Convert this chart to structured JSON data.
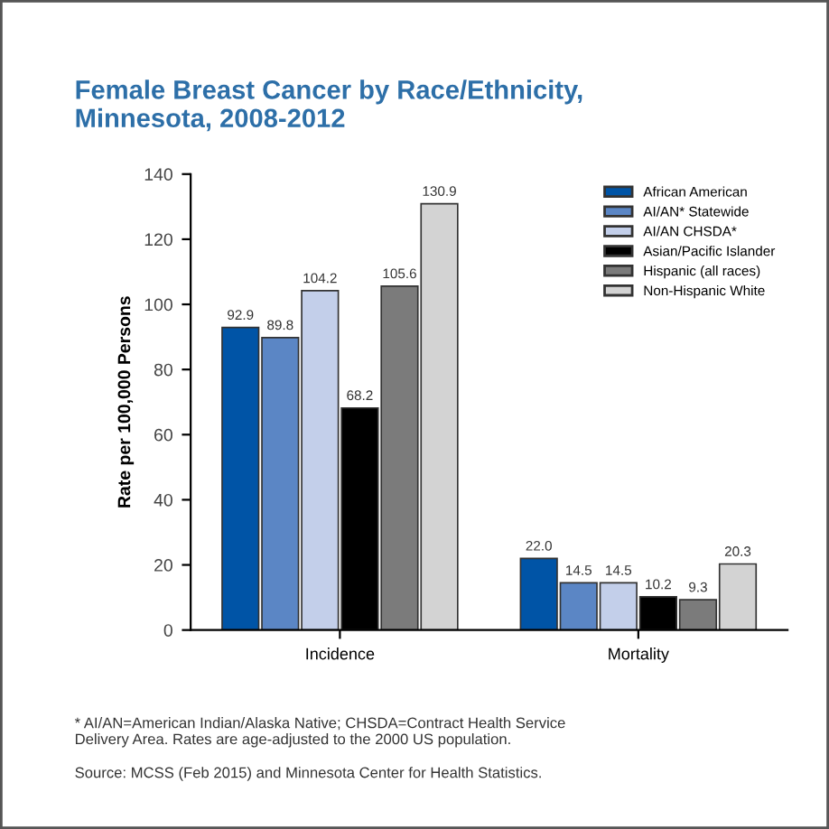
{
  "chart_data": {
    "type": "bar",
    "title": "Female Breast Cancer by Race/Ethnicity,\nMinnesota, 2008-2012",
    "ylabel": "Rate per 100,000 Persons",
    "categories": [
      "Incidence",
      "Mortality"
    ],
    "series": [
      {
        "name": "African American",
        "color": "#0054a6",
        "values": [
          92.9,
          22.0
        ],
        "value_labels": [
          "92.9",
          "22.0"
        ]
      },
      {
        "name": "AI/AN* Statewide",
        "color": "#5b86c5",
        "values": [
          89.8,
          14.5
        ],
        "value_labels": [
          "89.8",
          "14.5"
        ]
      },
      {
        "name": "AI/AN CHSDA*",
        "color": "#c3cfea",
        "values": [
          104.2,
          14.5
        ],
        "value_labels": [
          "104.2",
          "14.5"
        ]
      },
      {
        "name": "Asian/Pacific Islander",
        "color": "#000000",
        "values": [
          68.2,
          10.2
        ],
        "value_labels": [
          "68.2",
          "10.2"
        ]
      },
      {
        "name": "Hispanic (all races)",
        "color": "#7b7b7b",
        "values": [
          105.6,
          9.3
        ],
        "value_labels": [
          "105.6",
          "9.3"
        ]
      },
      {
        "name": "Non-Hispanic White",
        "color": "#d3d3d3",
        "values": [
          130.9,
          20.3
        ],
        "value_labels": [
          "130.9",
          "20.3"
        ]
      }
    ],
    "ylim": [
      0,
      140
    ],
    "yticks": [
      0,
      20,
      40,
      60,
      80,
      100,
      120,
      140
    ],
    "grid": false,
    "legend": "top right",
    "annotations": [
      "* AI/AN=American Indian/Alaska Native; CHSDA=Contract Health Service\nDelivery Area. Rates are age-adjusted to the 2000 US population.",
      "Source: MCSS (Feb 2015) and Minnesota Center for Health Statistics."
    ]
  }
}
